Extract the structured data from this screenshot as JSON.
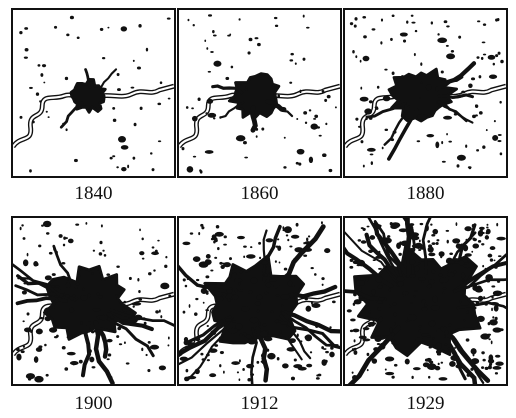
{
  "panels": [
    {
      "year": "1840",
      "growth": 0.1,
      "density": 55,
      "seed": 11
    },
    {
      "year": "1860",
      "growth": 0.2,
      "density": 80,
      "seed": 23
    },
    {
      "year": "1880",
      "growth": 0.3,
      "density": 110,
      "seed": 37
    },
    {
      "year": "1900",
      "growth": 0.45,
      "density": 150,
      "seed": 41
    },
    {
      "year": "1912",
      "growth": 0.62,
      "density": 210,
      "seed": 53
    },
    {
      "year": "1929",
      "growth": 0.82,
      "density": 300,
      "seed": 67
    }
  ],
  "colors": {
    "ink": "#111111",
    "paper": "#ffffff"
  }
}
